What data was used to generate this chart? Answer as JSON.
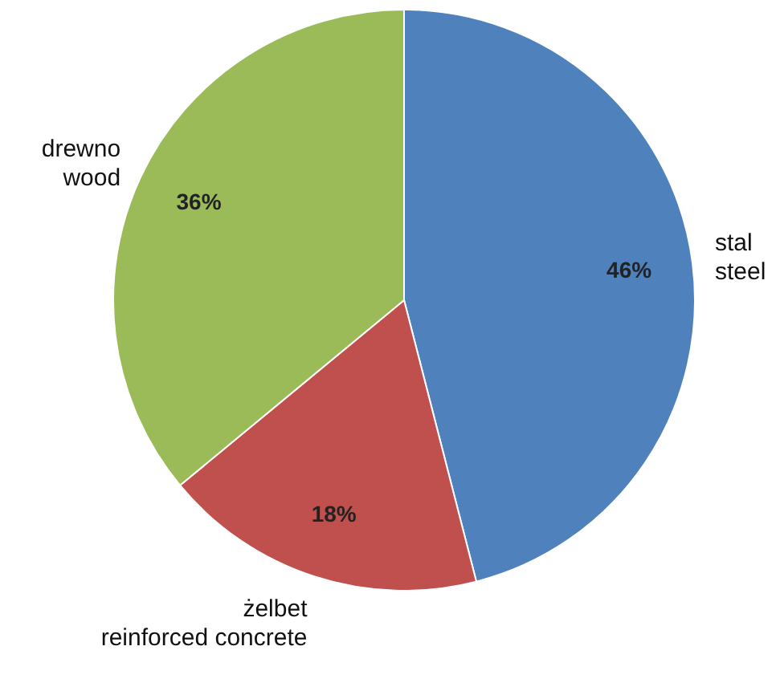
{
  "chart_data": {
    "type": "pie",
    "categories": [
      "stal\nsteel",
      "żelbet\nreinforced concrete",
      "drewno\nwood"
    ],
    "values": [
      46,
      18,
      36
    ],
    "value_labels": [
      "46%",
      "18%",
      "36%"
    ],
    "colors": [
      "#4f81bd",
      "#c0504d",
      "#9bbb59"
    ],
    "legend": false
  }
}
